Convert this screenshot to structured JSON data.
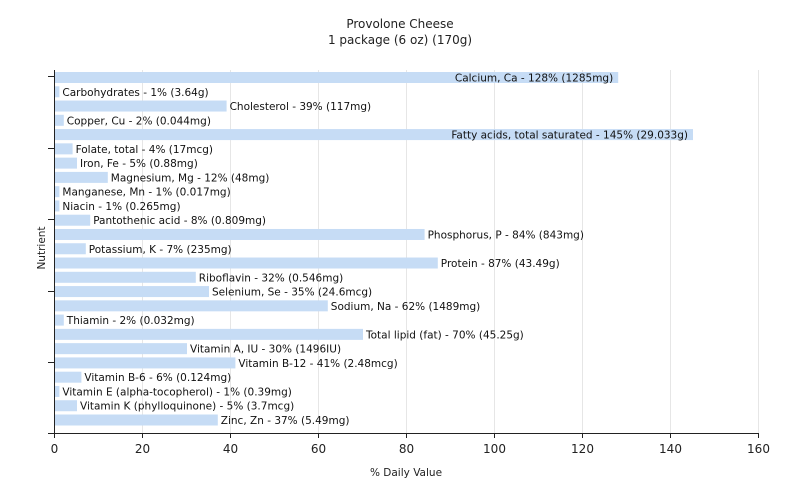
{
  "chart_data": {
    "type": "bar",
    "orientation": "horizontal",
    "title": "Provolone Cheese",
    "subtitle": "1 package (6 oz) (170g)",
    "xlabel": "% Daily Value",
    "ylabel": "Nutrient",
    "xlim": [
      0,
      160
    ],
    "xticks": [
      0,
      20,
      40,
      60,
      80,
      100,
      120,
      140,
      160
    ],
    "grid": true,
    "bar_color": "#c6dcf5",
    "categories": [
      "Calcium, Ca",
      "Carbohydrates",
      "Cholesterol",
      "Copper, Cu",
      "Fatty acids, total saturated",
      "Folate, total",
      "Iron, Fe",
      "Magnesium, Mg",
      "Manganese, Mn",
      "Niacin",
      "Pantothenic acid",
      "Phosphorus, P",
      "Potassium, K",
      "Protein",
      "Riboflavin",
      "Selenium, Se",
      "Sodium, Na",
      "Thiamin",
      "Total lipid (fat)",
      "Vitamin A, IU",
      "Vitamin B-12",
      "Vitamin B-6",
      "Vitamin E (alpha-tocopherol)",
      "Vitamin K (phylloquinone)",
      "Zinc, Zn"
    ],
    "values": [
      128,
      1,
      39,
      2,
      145,
      4,
      5,
      12,
      1,
      1,
      8,
      84,
      7,
      87,
      32,
      35,
      62,
      2,
      70,
      30,
      41,
      6,
      1,
      5,
      37
    ],
    "labels": [
      "Calcium, Ca - 128% (1285mg)",
      "Carbohydrates - 1% (3.64g)",
      "Cholesterol - 39% (117mg)",
      "Copper, Cu - 2% (0.044mg)",
      "Fatty acids, total saturated - 145% (29.033g)",
      "Folate, total - 4% (17mcg)",
      "Iron, Fe - 5% (0.88mg)",
      "Magnesium, Mg - 12% (48mg)",
      "Manganese, Mn - 1% (0.017mg)",
      "Niacin - 1% (0.265mg)",
      "Pantothenic acid - 8% (0.809mg)",
      "Phosphorus, P - 84% (843mg)",
      "Potassium, K - 7% (235mg)",
      "Protein - 87% (43.49g)",
      "Riboflavin - 32% (0.546mg)",
      "Selenium, Se - 35% (24.6mcg)",
      "Sodium, Na - 62% (1489mg)",
      "Thiamin - 2% (0.032mg)",
      "Total lipid (fat) - 70% (45.25g)",
      "Vitamin A, IU - 30% (1496IU)",
      "Vitamin B-12 - 41% (2.48mcg)",
      "Vitamin B-6 - 6% (0.124mg)",
      "Vitamin E (alpha-tocopherol) - 1% (0.39mg)",
      "Vitamin K (phylloquinone) - 5% (3.7mcg)",
      "Zinc, Zn - 37% (5.49mg)"
    ]
  }
}
